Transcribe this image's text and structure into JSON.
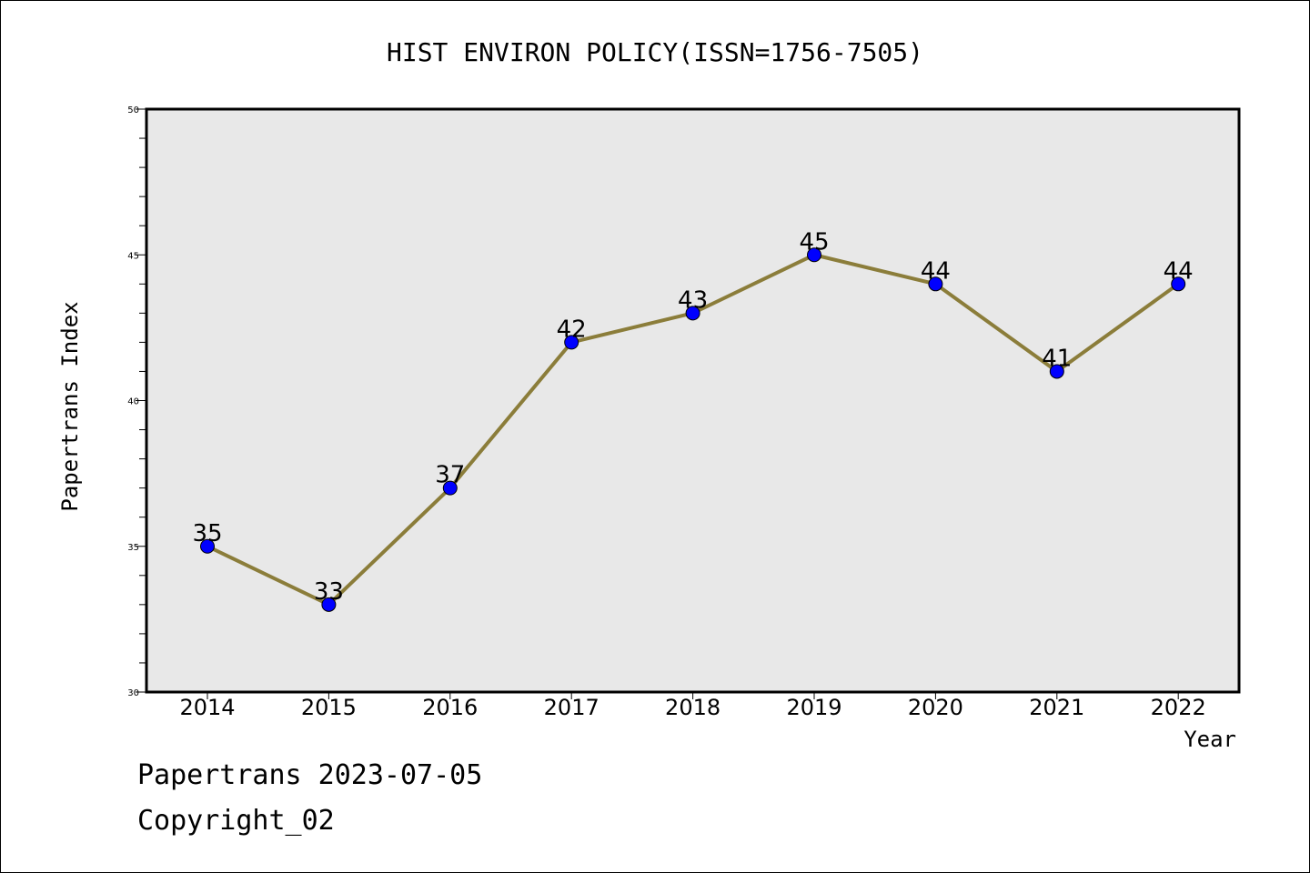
{
  "chart_data": {
    "type": "line",
    "title": "HIST ENVIRON POLICY(ISSN=1756-7505)",
    "xlabel": "Year",
    "ylabel": "Papertrans Index",
    "categories": [
      "2014",
      "2015",
      "2016",
      "2017",
      "2018",
      "2019",
      "2020",
      "2021",
      "2022"
    ],
    "series": [
      {
        "values": [
          35,
          33,
          37,
          42,
          43,
          45,
          44,
          41,
          44
        ]
      }
    ],
    "ylim": [
      30,
      50
    ],
    "yticks": [
      30,
      35,
      40,
      45,
      50
    ],
    "grid": false,
    "legend": "none",
    "colors": {
      "line": "#8B7D3A",
      "marker": "#0000FF",
      "plot_bg": "#E8E8E8"
    }
  },
  "footer": {
    "line1": "Papertrans 2023-07-05",
    "line2": "Copyright_02"
  }
}
